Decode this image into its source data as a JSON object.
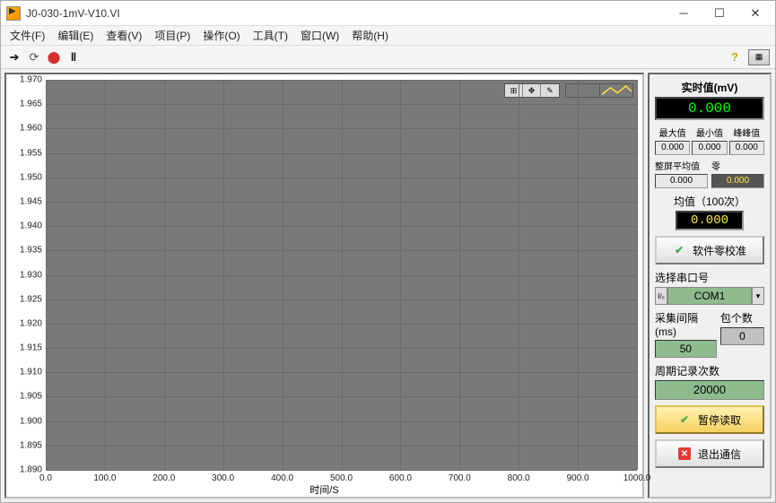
{
  "window": {
    "title": "J0-030-1mV-V10.VI"
  },
  "menu": {
    "file": "文件(F)",
    "edit": "编辑(E)",
    "view": "查看(V)",
    "project": "项目(P)",
    "operate": "操作(O)",
    "tool": "工具(T)",
    "window": "窗口(W)",
    "help": "帮助(H)"
  },
  "chart": {
    "type": "line",
    "background_color": "#7a7a7a",
    "grid_color": "#6a6a6a",
    "trace_color": "#ffeb3b",
    "ylabel": "",
    "xlabel": "时间/S",
    "ylim": [
      1.89,
      1.97
    ],
    "ytick_step": 0.005,
    "yticks": [
      "1.970",
      "1.965",
      "1.960",
      "1.955",
      "1.950",
      "1.945",
      "1.940",
      "1.935",
      "1.930",
      "1.925",
      "1.920",
      "1.915",
      "1.910",
      "1.905",
      "1.900",
      "1.895",
      "1.890"
    ],
    "xlim": [
      0,
      1000
    ],
    "xtick_step": 100,
    "xticks": [
      "0.0",
      "100.0",
      "200.0",
      "300.0",
      "400.0",
      "500.0",
      "600.0",
      "700.0",
      "800.0",
      "900.0",
      "1000.0"
    ],
    "tick_fontsize": 10,
    "label_fontsize": 11
  },
  "realtime": {
    "title": "实时值(mV)",
    "value": "0.000",
    "color": "#00ff00",
    "bg": "#000000"
  },
  "stats": {
    "max_label": "最大值",
    "min_label": "最小值",
    "pp_label": "峰峰值",
    "max": "0.000",
    "min": "0.000",
    "pp": "0.000",
    "screen_avg_label": "整屏平均值",
    "zero_label": "零",
    "screen_avg": "0.000",
    "zero": "0.000"
  },
  "mean": {
    "title": "均值（100次）",
    "value": "0.000",
    "color": "#ffeb3b",
    "bg": "#000000"
  },
  "buttons": {
    "zero_cal": "软件零校准",
    "pause_read": "暂停读取",
    "exit_comm": "退出通信"
  },
  "serial": {
    "label": "选择串口号",
    "value": "COM1"
  },
  "sampling": {
    "interval_label": "采集间隔(ms)",
    "interval": "50",
    "packet_label": "包个数",
    "packet": "0"
  },
  "record": {
    "label": "周期记录次数",
    "value": "20000"
  }
}
